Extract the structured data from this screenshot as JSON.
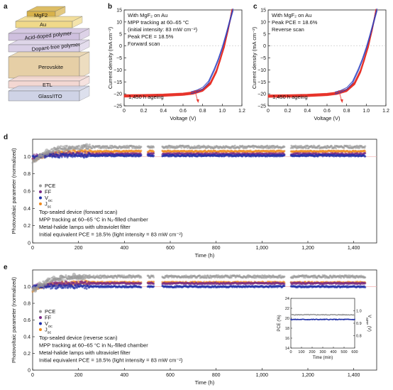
{
  "panel_letters": [
    "a",
    "b",
    "c",
    "d",
    "e"
  ],
  "stack": {
    "layers": [
      "MgF2",
      "Au",
      "Acid-doped polymer",
      "Dopant-free polymer",
      "Perovskite",
      "ETL",
      "Glass/ITO"
    ],
    "colors": [
      "#d8b24a",
      "#f0d98a",
      "#cfc0de",
      "#d9cfe6",
      "#e6cfa6",
      "#f3d7d2",
      "#cfd3e6"
    ]
  },
  "chart_data": [
    {
      "id": "b",
      "type": "line",
      "xlabel": "Voltage (V)",
      "ylabel": "Current density (mA cm⁻²)",
      "xlim": [
        0,
        1.2
      ],
      "ylim": [
        -25,
        15
      ],
      "xticks": [
        "0",
        "0.2",
        "0.4",
        "0.6",
        "0.8",
        "1.0",
        "1.2"
      ],
      "yticks": [
        "15",
        "10",
        "5",
        "0",
        "−5",
        "−10",
        "−15",
        "−20",
        "−25"
      ],
      "notes": [
        "With MgF₂ on Au",
        "MPP tracking at 60–65 °C",
        "(initial intensity: 83 mW cm⁻²)",
        "Peak PCE = 18.5%",
        "Forward scan"
      ],
      "aging_label": "1,450 h ageing",
      "series": [
        {
          "color": "#e8332a",
          "x": [
            0,
            0.2,
            0.4,
            0.6,
            0.7,
            0.8,
            0.88,
            0.94,
            0.98,
            1.02,
            1.06,
            1.1
          ],
          "y": [
            -20.8,
            -20.7,
            -20.5,
            -20.1,
            -19.6,
            -18.4,
            -15.5,
            -10.5,
            -5.5,
            0,
            7,
            15
          ]
        },
        {
          "color": "#2b3fbf",
          "x": [
            0.68,
            0.74,
            0.8,
            0.86,
            0.92,
            0.96,
            1.0,
            1.04,
            1.08,
            1.11
          ],
          "y": [
            -19.7,
            -19.0,
            -17.8,
            -15.2,
            -10.0,
            -5.8,
            -1.0,
            4.5,
            10.5,
            15
          ]
        }
      ]
    },
    {
      "id": "c",
      "type": "line",
      "xlabel": "Voltage (V)",
      "ylabel": "Current density (mA cm⁻²)",
      "xlim": [
        0,
        1.2
      ],
      "ylim": [
        -25,
        15
      ],
      "xticks": [
        "0",
        "0.2",
        "0.4",
        "0.6",
        "0.8",
        "1.0",
        "1.2"
      ],
      "yticks": [
        "15",
        "10",
        "5",
        "0",
        "−5",
        "−10",
        "−15",
        "−20",
        "−25"
      ],
      "notes": [
        "With MgF₂ on Au",
        "Peak PCE = 18.6%",
        "Reverse scan"
      ],
      "aging_label": "1,450 h ageing",
      "series": [
        {
          "color": "#e8332a",
          "x": [
            0,
            0.2,
            0.4,
            0.6,
            0.7,
            0.8,
            0.88,
            0.94,
            0.98,
            1.02,
            1.06,
            1.1
          ],
          "y": [
            -20.9,
            -20.8,
            -20.6,
            -20.2,
            -19.7,
            -18.5,
            -15.6,
            -10.6,
            -5.6,
            0,
            7,
            15
          ]
        },
        {
          "color": "#2b3fbf",
          "x": [
            0.68,
            0.74,
            0.8,
            0.86,
            0.92,
            0.96,
            1.0,
            1.04,
            1.08,
            1.11
          ],
          "y": [
            -19.8,
            -19.1,
            -17.9,
            -15.3,
            -10.1,
            -5.9,
            -1.1,
            4.4,
            10.4,
            15
          ]
        }
      ]
    },
    {
      "id": "d",
      "type": "scatter",
      "xlabel": "Time (h)",
      "ylabel": "Photovoltaic parameter (normalized)",
      "xlim": [
        0,
        1500
      ],
      "ylim": [
        0,
        1.2
      ],
      "xticks": [
        "0",
        "200",
        "400",
        "600",
        "800",
        "1,000",
        "1,200",
        "1,400"
      ],
      "yticks": [
        "0",
        "0.2",
        "0.4",
        "0.6",
        "0.8",
        "1.0"
      ],
      "gaps": [
        [
          475,
          500
        ],
        [
          528,
          565
        ],
        [
          1100,
          1125
        ]
      ],
      "series": [
        {
          "name": "PCE",
          "color": "#9a9a9a",
          "start": 0.93,
          "plateau": 1.11
        },
        {
          "name": "FF",
          "color": "#7a2a86",
          "start": 0.99,
          "plateau": 1.03
        },
        {
          "name": "V_oc",
          "color": "#1f2fa8",
          "start": 1.0,
          "plateau": 1.01
        },
        {
          "name": "J_sc",
          "color": "#f08a1c",
          "start": 0.95,
          "plateau": 1.06
        }
      ],
      "legend": [
        "PCE",
        "FF",
        "V",
        "J"
      ],
      "legend_sub": [
        "",
        "",
        "oc",
        "sc"
      ],
      "notes": [
        "Top-sealed device (forward scan)",
        "MPP tracking at 60–65 °C in N₂-filled chamber",
        "Metal-halide lamps with ultraviolet filter",
        "Initial equivalent PCE = 18.5% (light intensity = 83 mW cm⁻²)"
      ]
    },
    {
      "id": "e",
      "type": "scatter",
      "xlabel": "Time (h)",
      "ylabel": "Photovoltaic parameter (normalized)",
      "xlim": [
        0,
        1500
      ],
      "ylim": [
        0,
        1.2
      ],
      "xticks": [
        "0",
        "200",
        "400",
        "600",
        "800",
        "1,000",
        "1,200",
        "1,400"
      ],
      "yticks": [
        "0",
        "0.2",
        "0.4",
        "0.6",
        "0.8",
        "1.0"
      ],
      "gaps": [
        [
          475,
          500
        ],
        [
          528,
          565
        ],
        [
          1100,
          1125
        ]
      ],
      "series": [
        {
          "name": "PCE",
          "color": "#9a9a9a",
          "start": 0.95,
          "plateau": 1.12
        },
        {
          "name": "FF",
          "color": "#7a2a86",
          "start": 1.0,
          "plateau": 1.04
        },
        {
          "name": "V_oc",
          "color": "#1f2fa8",
          "start": 1.0,
          "plateau": 1.0
        },
        {
          "name": "J_sc",
          "color": "#f08a1c",
          "start": 0.96,
          "plateau": 1.05
        }
      ],
      "legend": [
        "PCE",
        "FF",
        "V",
        "J"
      ],
      "legend_sub": [
        "",
        "",
        "oc",
        "sc"
      ],
      "notes": [
        "Top-sealed device (reverse scan)",
        "MPP tracking at 60–65 °C in N₂-filled chamber",
        "Metal-halide lamps with ultraviolet filter",
        "Initial equivalent PCE = 18.5% (light intensity = 83 mW cm⁻²)"
      ]
    },
    {
      "id": "e-inset",
      "type": "scatter",
      "xlabel": "Time (min)",
      "ylabel_left": "PCE (%)",
      "ylabel_right": "V_MPP (V)",
      "ylabel_right_main": "V",
      "ylabel_right_sub": "MPP",
      "ylabel_right_unit": " (V)",
      "xlim": [
        0,
        600
      ],
      "ylim_left": [
        14,
        24
      ],
      "ylim_right": [
        0.7,
        1.1
      ],
      "xticks": [
        "0",
        "100",
        "200",
        "300",
        "400",
        "500",
        "600"
      ],
      "yticks_left": [
        "14",
        "16",
        "18",
        "20",
        "22",
        "24"
      ],
      "yticks_right": [
        "0.8",
        "0.9",
        "1.0"
      ],
      "series": [
        {
          "name": "PCE",
          "color": "#9a9a9a",
          "axis": "left",
          "value": 20.7
        },
        {
          "name": "V_MPP",
          "color": "#1f2fa8",
          "axis": "right",
          "value": 0.93
        }
      ]
    }
  ]
}
